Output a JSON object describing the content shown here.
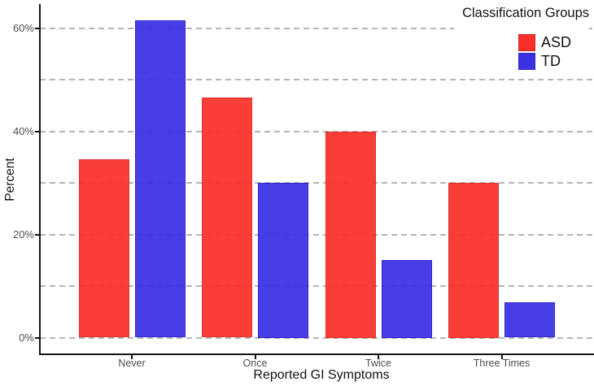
{
  "chart_data": {
    "type": "bar",
    "title": "",
    "xlabel": "Reported GI Symptoms",
    "ylabel": "Percent",
    "categories": [
      "Never",
      "Once",
      "Twice",
      "Three Times"
    ],
    "series": [
      {
        "name": "ASD",
        "color": "#f93029",
        "edge": "#d8241f",
        "values": [
          34.5,
          46.5,
          40,
          30
        ]
      },
      {
        "name": "TD",
        "color": "#3a31e4",
        "edge": "#2318c6",
        "values": [
          61.5,
          30,
          15,
          6.8
        ]
      }
    ],
    "ylim": [
      0,
      65
    ],
    "yticks": [
      {
        "label": "0%",
        "value": 0
      },
      {
        "label": "20%",
        "value": 20
      },
      {
        "label": "40%",
        "value": 40
      },
      {
        "label": "60%",
        "value": 60
      }
    ],
    "gridlines": {
      "values": [
        0,
        10,
        20,
        30,
        40,
        50,
        60
      ],
      "style": "dashed",
      "color": "#b4b4b4"
    },
    "grid": "horizontal-dashed",
    "legend": {
      "title": "Classification Groups",
      "position": "top-right",
      "items": [
        {
          "label": "ASD",
          "color": "#f93029"
        },
        {
          "label": "TD",
          "color": "#3a31e4"
        }
      ]
    },
    "axis_color": "#141414",
    "tick_label_color": "#4d4d4d"
  }
}
